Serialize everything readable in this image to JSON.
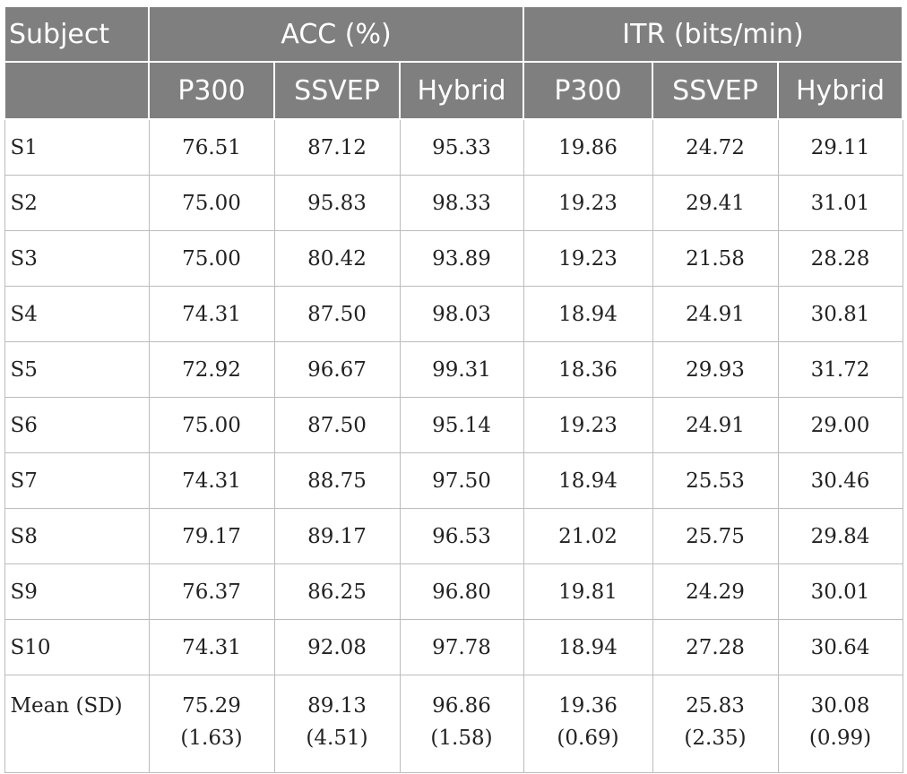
{
  "header": {
    "subject": "Subject",
    "acc": "ACC (%)",
    "itr": "ITR (bits/min)",
    "sub": [
      "P300",
      "SSVEP",
      "Hybrid",
      "P300",
      "SSVEP",
      "Hybrid"
    ]
  },
  "rows": [
    {
      "subject": "S1",
      "values": [
        "76.51",
        "87.12",
        "95.33",
        "19.86",
        "24.72",
        "29.11"
      ]
    },
    {
      "subject": "S2",
      "values": [
        "75.00",
        "95.83",
        "98.33",
        "19.23",
        "29.41",
        "31.01"
      ]
    },
    {
      "subject": "S3",
      "values": [
        "75.00",
        "80.42",
        "93.89",
        "19.23",
        "21.58",
        "28.28"
      ]
    },
    {
      "subject": "S4",
      "values": [
        "74.31",
        "87.50",
        "98.03",
        "18.94",
        "24.91",
        "30.81"
      ]
    },
    {
      "subject": "S5",
      "values": [
        "72.92",
        "96.67",
        "99.31",
        "18.36",
        "29.93",
        "31.72"
      ]
    },
    {
      "subject": "S6",
      "values": [
        "75.00",
        "87.50",
        "95.14",
        "19.23",
        "24.91",
        "29.00"
      ]
    },
    {
      "subject": "S7",
      "values": [
        "74.31",
        "88.75",
        "97.50",
        "18.94",
        "25.53",
        "30.46"
      ]
    },
    {
      "subject": "S8",
      "values": [
        "79.17",
        "89.17",
        "96.53",
        "21.02",
        "25.75",
        "29.84"
      ]
    },
    {
      "subject": "S9",
      "values": [
        "76.37",
        "86.25",
        "96.80",
        "19.81",
        "24.29",
        "30.01"
      ]
    },
    {
      "subject": "S10",
      "values": [
        "74.31",
        "92.08",
        "97.78",
        "18.94",
        "27.28",
        "30.64"
      ]
    }
  ],
  "mean": {
    "label": "Mean (SD)",
    "values": [
      "75.29",
      "89.13",
      "96.86",
      "19.36",
      "25.83",
      "30.08"
    ],
    "sd": [
      "(1.63)",
      "(4.51)",
      "(1.58)",
      "(0.69)",
      "(2.35)",
      "(0.99)"
    ]
  }
}
